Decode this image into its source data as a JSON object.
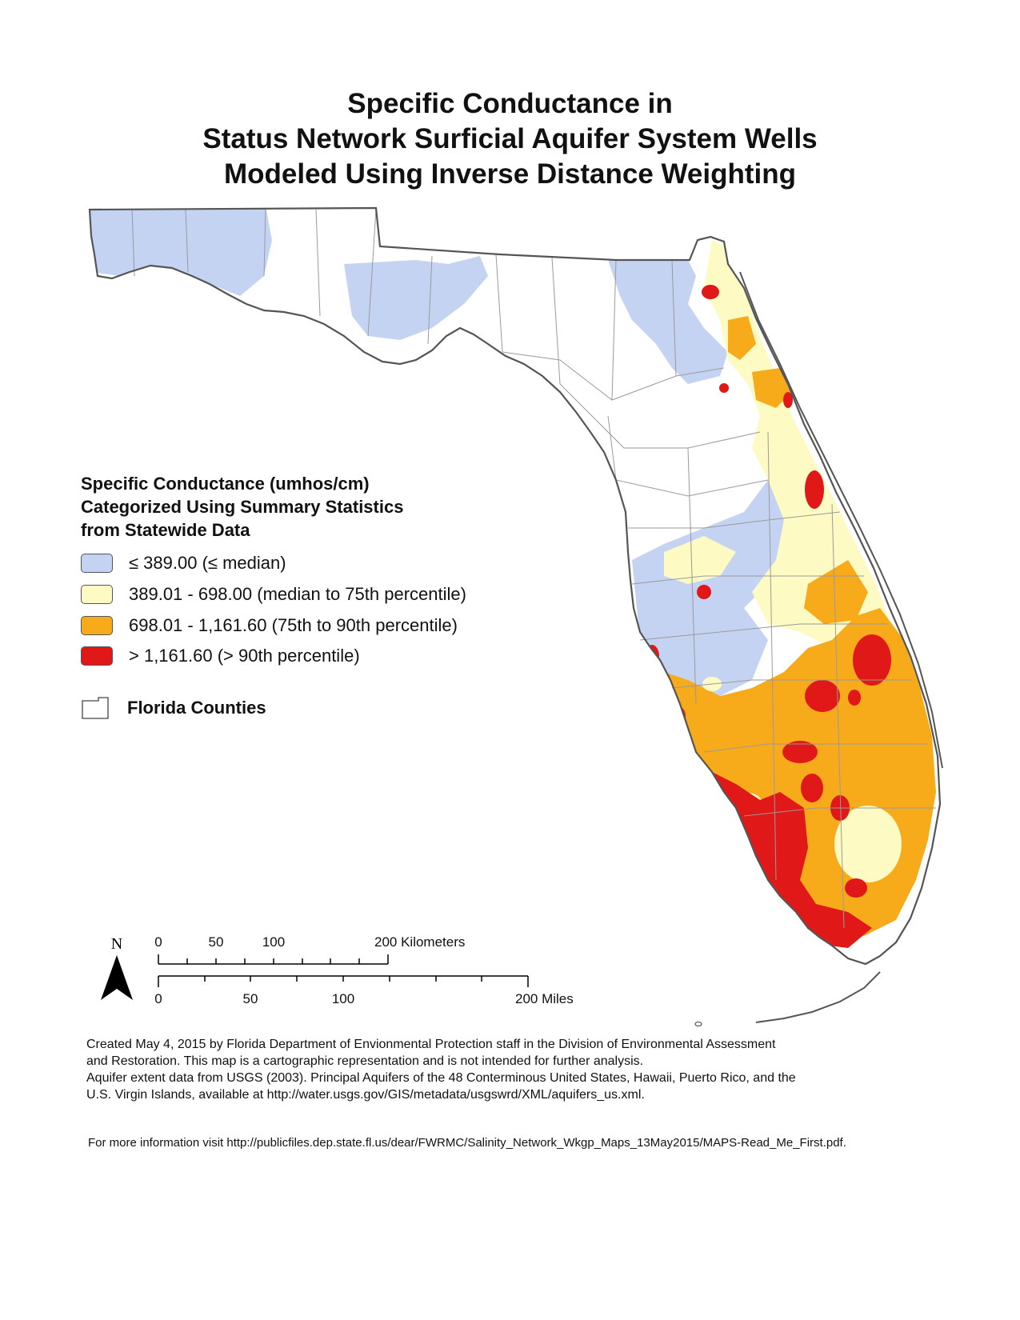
{
  "title": {
    "line1": "Specific Conductance in",
    "line2": "Status Network Surficial Aquifer System Wells",
    "line3": "Modeled Using Inverse Distance Weighting"
  },
  "legend": {
    "heading_line1": "Specific Conductance (umhos/cm)",
    "heading_line2": "Categorized Using Summary Statistics",
    "heading_line3": "from Statewide Data",
    "classes": [
      {
        "label": "≤ 389.00 (≤ median)",
        "color": "#c5d3f3"
      },
      {
        "label": "389.01 - 698.00 (median to 75th percentile)",
        "color": "#fdfbc3"
      },
      {
        "label": "698.01 - 1,161.60 (75th to 90th percentile)",
        "color": "#f7aa1a"
      },
      {
        "label": "> 1,161.60 (> 90th percentile)",
        "color": "#e01818"
      }
    ],
    "counties_label": "Florida Counties"
  },
  "north_arrow": {
    "label": "N"
  },
  "scale": {
    "km_ticks": [
      "0",
      "50",
      "100",
      "200 Kilometers"
    ],
    "mile_ticks": [
      "0",
      "50",
      "100",
      "200 Miles"
    ]
  },
  "credits": {
    "line1": "Created May 4, 2015 by Florida Department of Envionmental Protection staff in the Division of Environmental Assessment",
    "line2": "and Restoration.  This map is a cartographic representation and is not intended for further analysis.",
    "line3": "Aquifer extent data from USGS (2003). Principal Aquifers of the 48 Conterminous United States, Hawaii, Puerto Rico, and the",
    "line4": "U.S. Virgin Islands, available at http://water.usgs.gov/GIS/metadata/usgswrd/XML/aquifers_us.xml.",
    "more_info": "For more information visit http://publicfiles.dep.state.fl.us/dear/FWRMC/Salinity_Network_Wkgp_Maps_13May2015/MAPS-Read_Me_First.pdf."
  },
  "colors": {
    "outline": "#555555",
    "county_line": "#9a9a9a",
    "land": "#ffffff"
  }
}
